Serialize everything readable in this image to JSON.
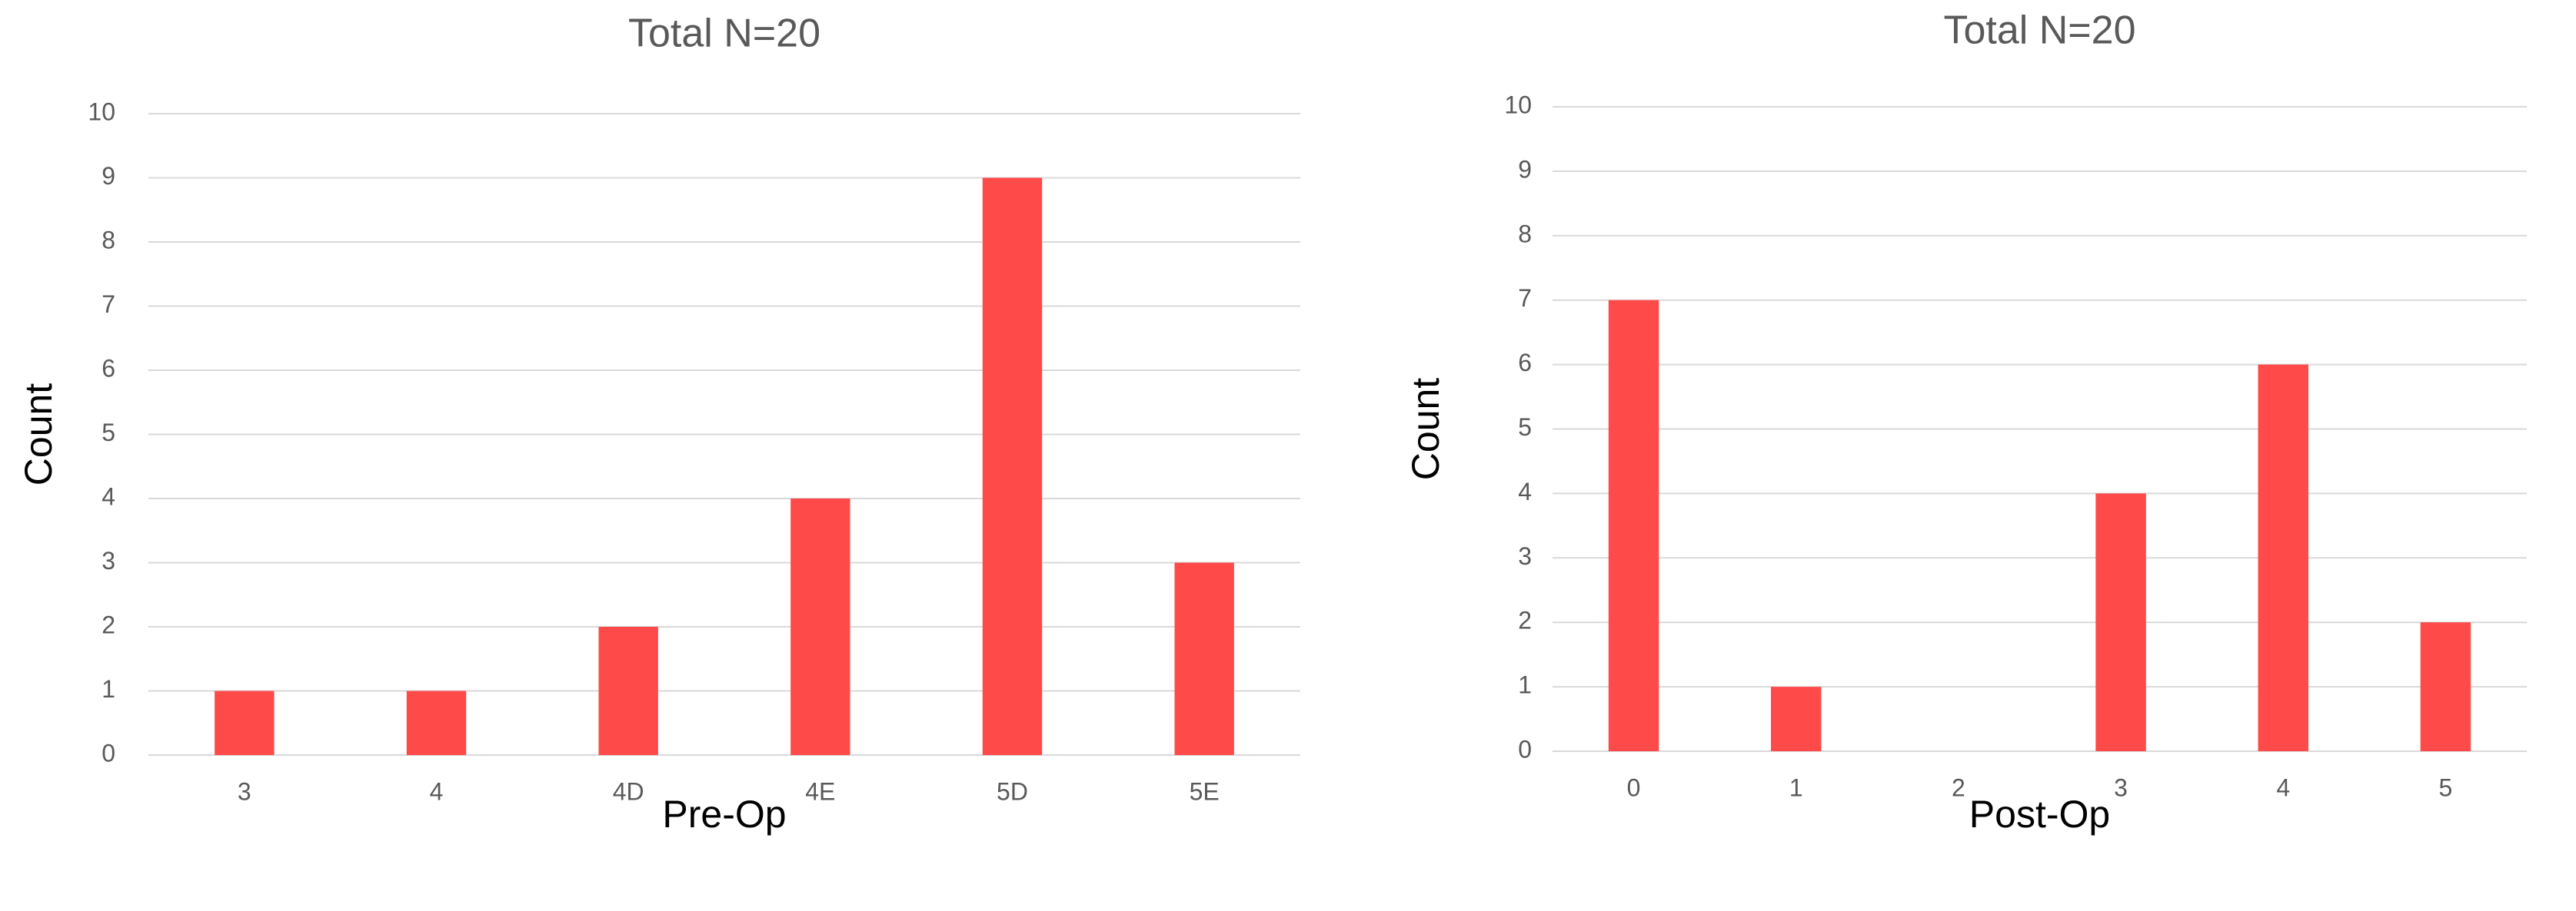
{
  "chart_data": [
    {
      "type": "bar",
      "title": "Total N=20",
      "x_label": "Pre-Op",
      "y_label": "Count",
      "categories": [
        "3",
        "4",
        "4D",
        "4E",
        "5D",
        "5E"
      ],
      "values": [
        1,
        1,
        2,
        4,
        9,
        3
      ],
      "color": "#ff4a4a",
      "ylim": [
        0,
        10
      ],
      "yticks": [
        0,
        1,
        2,
        3,
        4,
        5,
        6,
        7,
        8,
        9,
        10
      ],
      "grid": true
    },
    {
      "type": "bar",
      "title": "Total N=20",
      "x_label": "Post-Op",
      "y_label": "Count",
      "categories": [
        "0",
        "1",
        "2",
        "3",
        "4",
        "5"
      ],
      "values": [
        7,
        1,
        0,
        4,
        6,
        2
      ],
      "color": "#ff4a4a",
      "ylim": [
        0,
        10
      ],
      "yticks": [
        0,
        1,
        2,
        3,
        4,
        5,
        6,
        7,
        8,
        9,
        10
      ],
      "grid": true
    }
  ]
}
